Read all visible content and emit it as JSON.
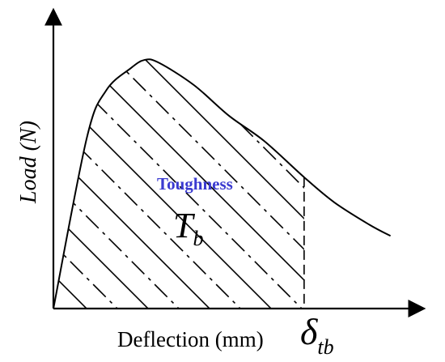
{
  "chart_data": {
    "type": "area",
    "title": "",
    "xlabel": "Deflection (mm)",
    "ylabel": "Load (N)",
    "x_marker_label": {
      "main": "δ",
      "sub": "tb"
    },
    "area_label": "Toughness",
    "area_symbol": {
      "main": "T",
      "sub": "b"
    },
    "xlim": [
      0,
      10
    ],
    "ylim": [
      0,
      10
    ],
    "grid": false,
    "marker_x": 7.14,
    "series": [
      {
        "x": [
          0,
          0.95,
          1.5,
          2.2,
          2.6,
          3.0,
          4.0,
          5.0,
          6.0,
          7.14,
          8.0,
          9.0,
          9.6
        ],
        "y": [
          0,
          6.1,
          7.8,
          8.6,
          8.9,
          8.8,
          8.0,
          6.9,
          6.0,
          4.7,
          3.8,
          3.0,
          2.6
        ]
      }
    ],
    "colors": {
      "curve": "#000000",
      "area_label": "#3a3ad0",
      "hatch": "#000000"
    }
  }
}
